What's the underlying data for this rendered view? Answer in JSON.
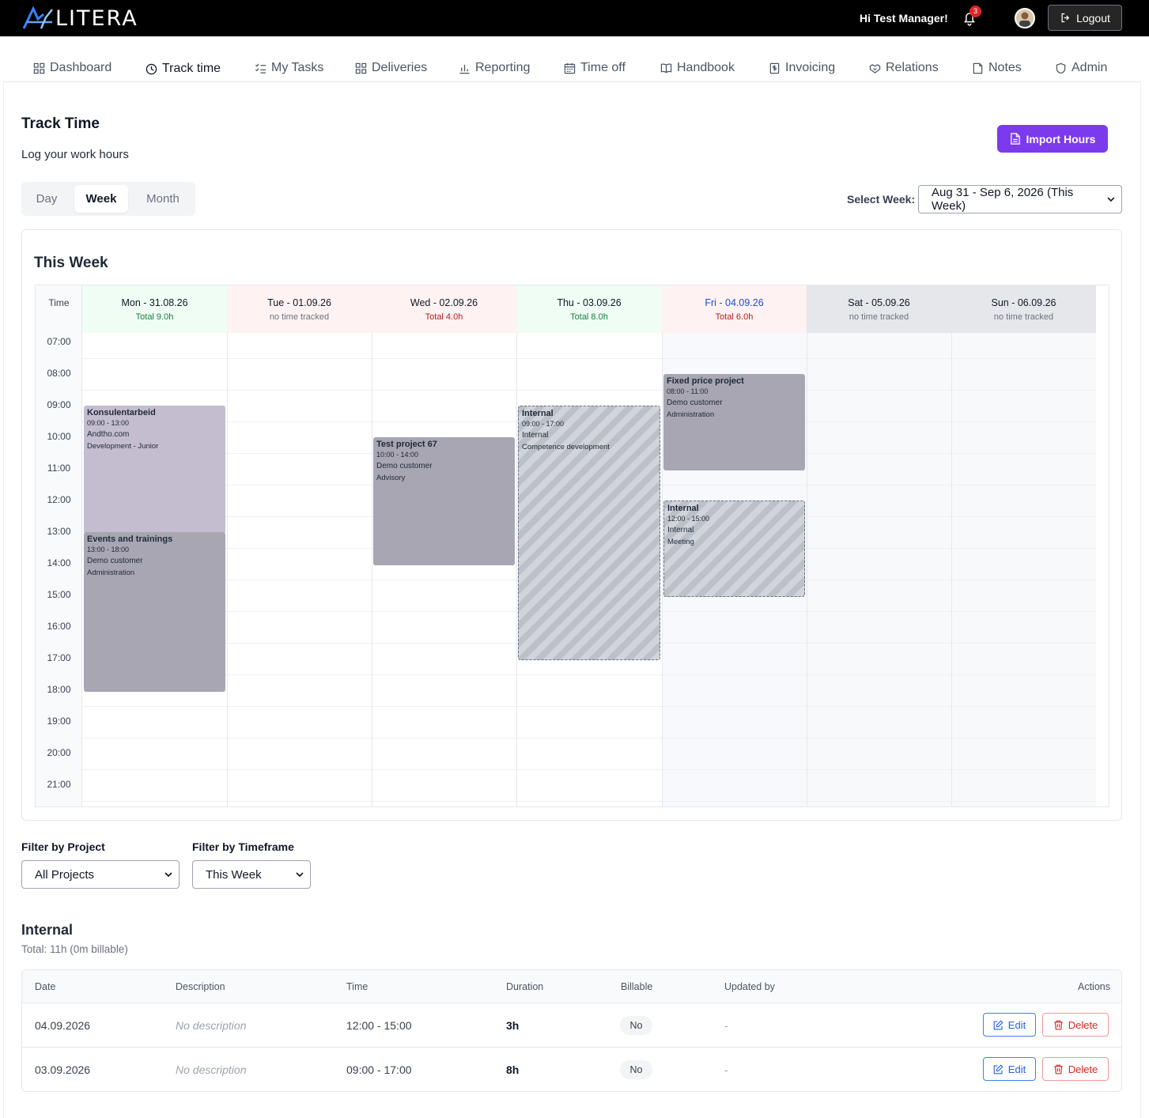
{
  "brand": {
    "name": "LITERA"
  },
  "topbar": {
    "greeting": "Hi Test Manager!",
    "notification_count": "3",
    "logout_label": "Logout"
  },
  "tabs": [
    {
      "label": "Dashboard",
      "icon": "grid-icon"
    },
    {
      "label": "Track time",
      "icon": "clock-icon",
      "active": true
    },
    {
      "label": "My Tasks",
      "icon": "checklist-icon"
    },
    {
      "label": "Deliveries",
      "icon": "grid-icon"
    },
    {
      "label": "Reporting",
      "icon": "bar-chart-icon"
    },
    {
      "label": "Time off",
      "icon": "calendar-icon"
    },
    {
      "label": "Handbook",
      "icon": "book-icon"
    },
    {
      "label": "Invoicing",
      "icon": "invoice-icon"
    },
    {
      "label": "Relations",
      "icon": "handshake-icon"
    },
    {
      "label": "Notes",
      "icon": "note-icon"
    },
    {
      "label": "Admin",
      "icon": "shield-icon"
    }
  ],
  "header": {
    "title": "Track Time",
    "subtitle": "Log your work hours",
    "import_label": "Import Hours"
  },
  "view_toggle": {
    "options": [
      "Day",
      "Week",
      "Month"
    ],
    "selected": "Week"
  },
  "week_select": {
    "label": "Select Week:",
    "value": "Aug 31 - Sep 6, 2026 (This Week)"
  },
  "calendar": {
    "title": "This Week",
    "time_header": "Time",
    "hours": [
      "07:00",
      "08:00",
      "09:00",
      "10:00",
      "11:00",
      "12:00",
      "13:00",
      "14:00",
      "15:00",
      "16:00",
      "17:00",
      "18:00",
      "19:00",
      "20:00",
      "21:00"
    ],
    "days": [
      {
        "label": "Mon - 31.08.26",
        "total": "Total 9.0h",
        "status": "full"
      },
      {
        "label": "Tue - 01.09.26",
        "total": "no time tracked",
        "status": "empty"
      },
      {
        "label": "Wed - 02.09.26",
        "total": "Total 4.0h",
        "status": "short"
      },
      {
        "label": "Thu - 03.09.26",
        "total": "Total 8.0h",
        "status": "full"
      },
      {
        "label": "Fri - 04.09.26",
        "total": "Total 6.0h",
        "status": "short-today"
      },
      {
        "label": "Sat - 05.09.26",
        "total": "no time tracked",
        "status": "weekend"
      },
      {
        "label": "Sun - 06.09.26",
        "total": "no time tracked",
        "status": "weekend"
      }
    ],
    "events": [
      {
        "day": 0,
        "start": 9,
        "end": 13,
        "title": "Konsulentarbeid",
        "time": "09:00 - 13:00",
        "customer": "Andtho.com",
        "activity": "Development - Junior",
        "style": "lilac"
      },
      {
        "day": 0,
        "start": 13,
        "end": 18,
        "title": "Events and trainings",
        "time": "13:00 - 18:00",
        "customer": "Demo customer",
        "activity": "Administration",
        "style": "gray"
      },
      {
        "day": 2,
        "start": 10,
        "end": 14,
        "title": "Test project 67",
        "time": "10:00 - 14:00",
        "customer": "Demo customer",
        "activity": "Advisory",
        "style": "gray"
      },
      {
        "day": 3,
        "start": 9,
        "end": 17,
        "title": "Internal",
        "time": "09:00 - 17:00",
        "customer": "Internal",
        "activity": "Competence development",
        "style": "hatch"
      },
      {
        "day": 4,
        "start": 8,
        "end": 11,
        "title": "Fixed price project",
        "time": "08:00 - 11:00",
        "customer": "Demo customer",
        "activity": "Administration",
        "style": "gray"
      },
      {
        "day": 4,
        "start": 12,
        "end": 15,
        "title": "Internal",
        "time": "12:00 - 15:00",
        "customer": "Internal",
        "activity": "Meeting",
        "style": "hatch"
      }
    ]
  },
  "filters": {
    "project_label": "Filter by Project",
    "project_value": "All Projects",
    "timeframe_label": "Filter by Timeframe",
    "timeframe_value": "This Week"
  },
  "group": {
    "title": "Internal",
    "total": "Total: 11h (0m billable)",
    "columns": [
      "Date",
      "Description",
      "Time",
      "Duration",
      "Billable",
      "Updated by",
      "Actions"
    ],
    "rows": [
      {
        "date": "04.09.2026",
        "description": "No description",
        "time": "12:00 - 15:00",
        "duration": "3h",
        "billable": "No",
        "updated_by": "-"
      },
      {
        "date": "03.09.2026",
        "description": "No description",
        "time": "09:00 - 17:00",
        "duration": "8h",
        "billable": "No",
        "updated_by": "-"
      }
    ],
    "edit_label": "Edit",
    "delete_label": "Delete"
  },
  "colors": {
    "accent": "#7c3aed",
    "full_day": "#f0fdf4",
    "short_day": "#fef2f2",
    "weekend": "#e5e7eb",
    "today_text": "#1d4ed8",
    "short_text": "#b91c1c",
    "full_text": "#15803d"
  }
}
